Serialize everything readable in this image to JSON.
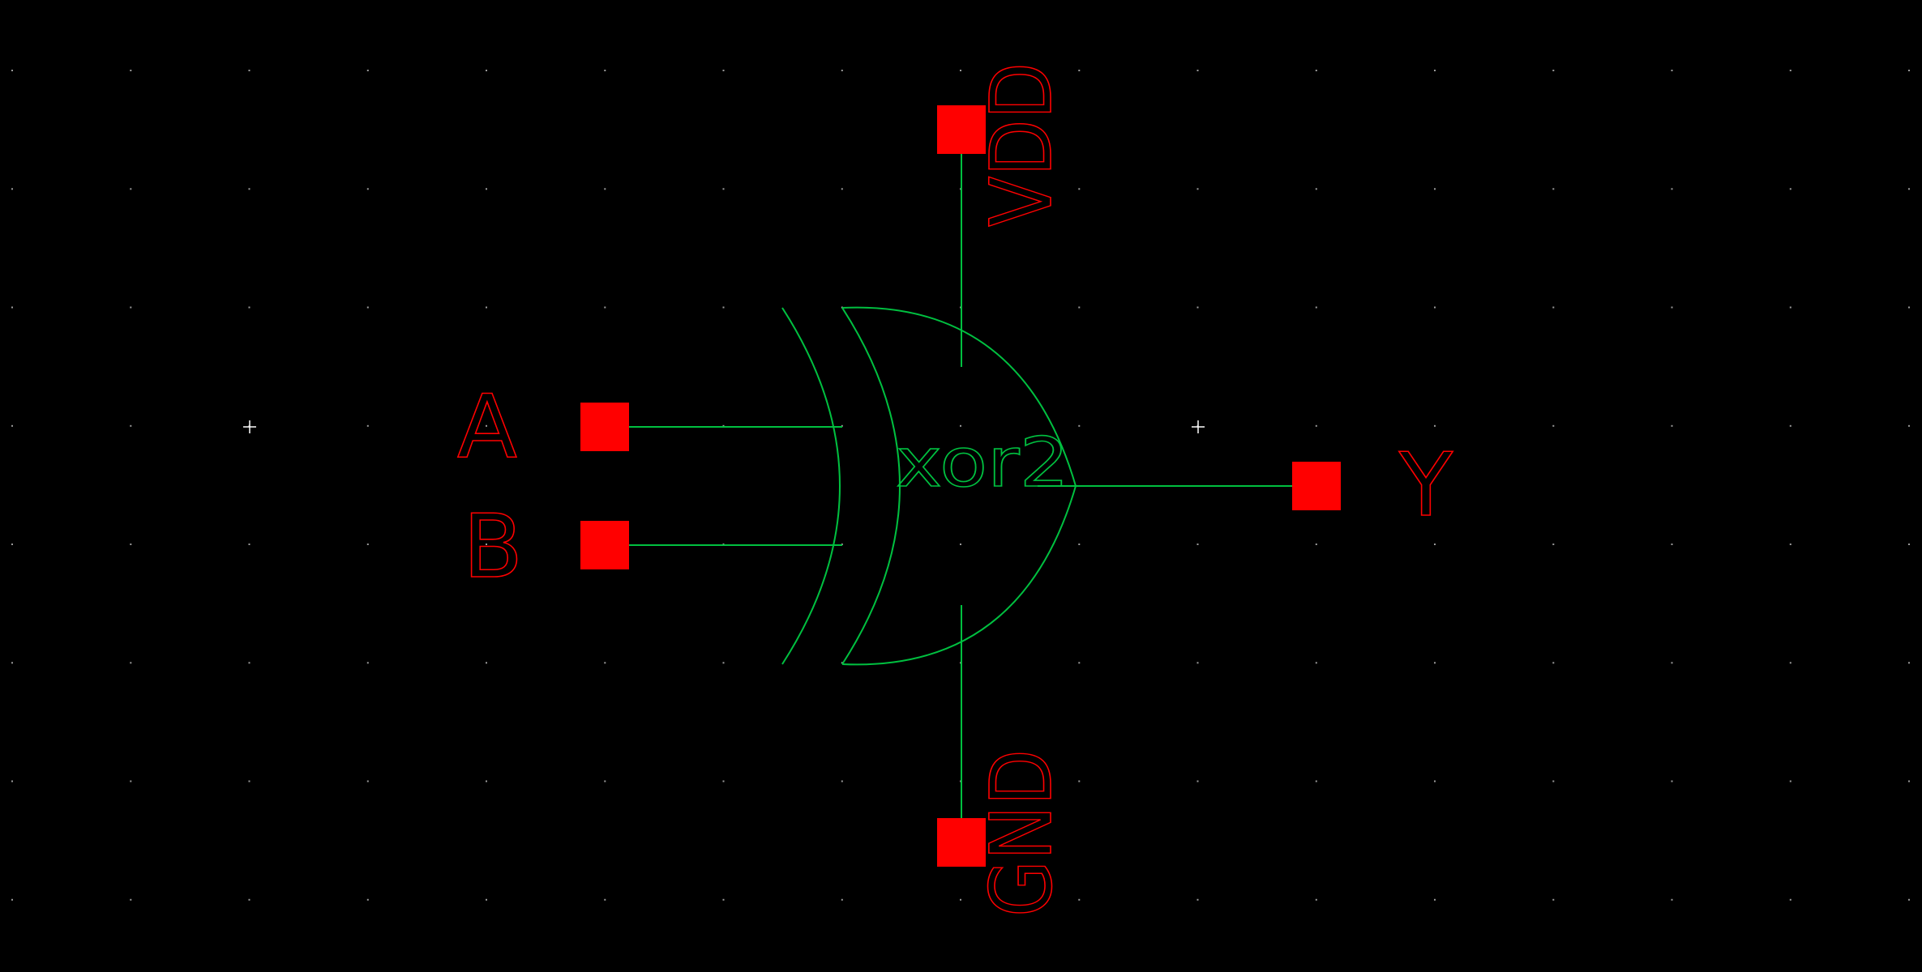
{
  "cell": {
    "name": "xor2"
  },
  "pins": {
    "a": {
      "label": "A"
    },
    "b": {
      "label": "B"
    },
    "y": {
      "label": "Y"
    },
    "vdd": {
      "label": "VDD"
    },
    "gnd": {
      "label": "GND"
    }
  },
  "colors": {
    "background": "#000000",
    "wire": "#00c040",
    "pin": "#ff0000",
    "grid": "#9a9a9a",
    "origin_marker": "#ffffff"
  }
}
